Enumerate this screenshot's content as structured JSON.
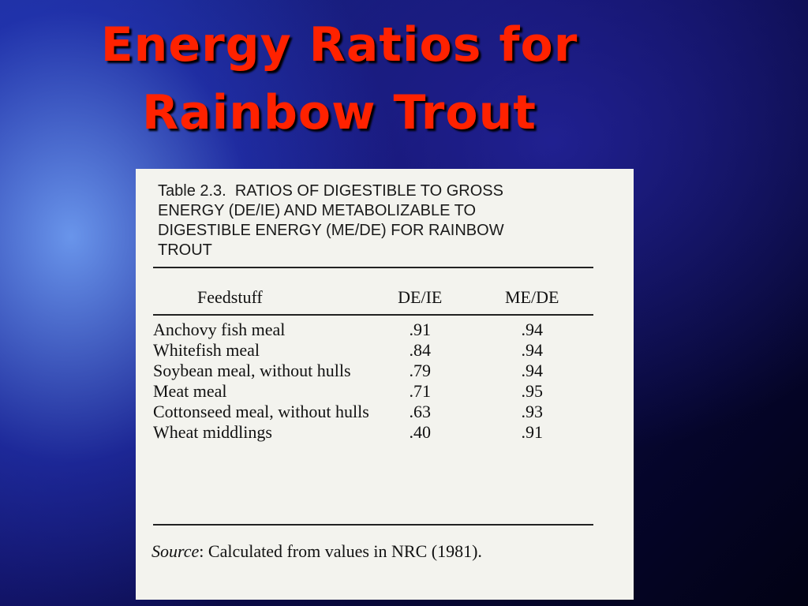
{
  "title": "Energy Ratios for Rainbow Trout",
  "table": {
    "caption_label": "Table 2.3.",
    "caption": "RATIOS OF DIGESTIBLE TO GROSS ENERGY (DE/IE) AND METABOLIZABLE TO DIGESTIBLE ENERGY (ME/DE) FOR RAINBOW TROUT",
    "columns": [
      "Feedstuff",
      "DE/IE",
      "ME/DE"
    ],
    "rows": [
      [
        "Anchovy fish meal",
        ".91",
        ".94"
      ],
      [
        "Whitefish meal",
        ".84",
        ".94"
      ],
      [
        "Soybean meal, without hulls",
        ".79",
        ".94"
      ],
      [
        "Meat meal",
        ".71",
        ".95"
      ],
      [
        "Cottonseed meal, without hulls",
        ".63",
        ".93"
      ],
      [
        "Wheat middlings",
        ".40",
        ".91"
      ]
    ],
    "source_label": "Source",
    "source_text": ": Calculated from values in NRC (1981)."
  }
}
